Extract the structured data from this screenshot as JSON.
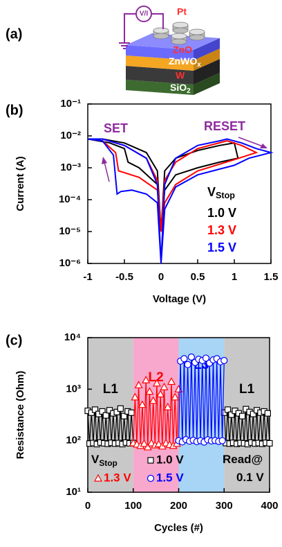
{
  "schematic": {
    "panel_label": "(a)",
    "source": "V/I",
    "layers": [
      {
        "text": "Pt"
      },
      {
        "text": "ZnO"
      },
      {
        "text": "ZnWO",
        "sub": "x"
      },
      {
        "text": "W"
      },
      {
        "text": "SiO",
        "sub": "2"
      }
    ]
  },
  "chart_data": [
    {
      "type": "line",
      "panel_label": "(b)",
      "xlabel": "Voltage (V)",
      "ylabel": "Current (A)",
      "log_y": true,
      "grid": false,
      "xlim": [
        -1,
        1.5
      ],
      "xticks": [
        -1,
        -0.5,
        0,
        0.5,
        1,
        1.5
      ],
      "ylim": [
        1e-06,
        0.1
      ],
      "yticks": [
        {
          "value": 1e-06,
          "label": "10⁻⁶"
        },
        {
          "value": 1e-05,
          "label": "10⁻⁵"
        },
        {
          "value": 0.0001,
          "label": "10⁻⁴"
        },
        {
          "value": 0.001,
          "label": "10⁻³"
        },
        {
          "value": 0.01,
          "label": "10⁻²"
        },
        {
          "value": 0.1,
          "label": "10⁻¹"
        }
      ],
      "annotations": [
        {
          "text": "SET"
        },
        {
          "text": "RESET"
        }
      ],
      "legend_title": {
        "text": "V",
        "sub": "Stop"
      },
      "series": [
        {
          "name": "1.0 V",
          "color": "#000000",
          "x": [
            0,
            -0.05,
            -0.3,
            -0.45,
            -0.5,
            -0.7,
            -1,
            -0.8,
            -0.5,
            -0.2,
            -0.05,
            0,
            0.05,
            0.2,
            0.5,
            0.8,
            1.0,
            1.05,
            0.8,
            0.5,
            0.2,
            0.05,
            0
          ],
          "values": [
            1e-05,
            0.0003,
            0.001,
            0.0015,
            0.004,
            0.006,
            0.008,
            0.008,
            0.006,
            0.003,
            0.0008,
            1e-05,
            0.0008,
            0.002,
            0.0035,
            0.005,
            0.006,
            0.002,
            0.0015,
            0.001,
            0.0006,
            0.0002,
            1e-05
          ]
        },
        {
          "name": "1.3 V",
          "color": "#ff0000",
          "x": [
            0,
            -0.05,
            -0.3,
            -0.5,
            -0.58,
            -0.62,
            -0.8,
            -1,
            -0.8,
            -0.5,
            -0.2,
            -0.05,
            0,
            0.05,
            0.2,
            0.5,
            0.9,
            1.1,
            1.3,
            1.0,
            0.5,
            0.2,
            0.05,
            0
          ],
          "values": [
            1e-05,
            0.0002,
            0.0005,
            0.0007,
            0.0008,
            0.003,
            0.007,
            0.008,
            0.008,
            0.005,
            0.002,
            0.0004,
            1e-05,
            0.0004,
            0.0015,
            0.004,
            0.007,
            0.005,
            0.003,
            0.0018,
            0.0008,
            0.0003,
            8e-05,
            1e-05
          ]
        },
        {
          "name": "1.5 V",
          "color": "#0000ff",
          "x": [
            0,
            -0.05,
            -0.2,
            -0.4,
            -0.55,
            -0.6,
            -0.65,
            -0.8,
            -1,
            -0.8,
            -0.5,
            -0.2,
            -0.05,
            0,
            0.05,
            0.2,
            0.5,
            0.8,
            0.9,
            1.1,
            1.3,
            1.5,
            1.2,
            1.0,
            0.5,
            0.2,
            0.05,
            0
          ],
          "values": [
            1e-06,
            8e-05,
            0.00015,
            0.0002,
            0.00018,
            0.00015,
            0.0025,
            0.007,
            0.008,
            0.008,
            0.005,
            0.002,
            0.0003,
            1e-06,
            0.0003,
            0.002,
            0.005,
            0.007,
            0.008,
            0.006,
            0.004,
            0.003,
            0.002,
            0.0012,
            0.0006,
            0.00025,
            5e-05,
            1e-06
          ]
        }
      ]
    },
    {
      "type": "line",
      "panel_label": "(c)",
      "xlabel": "Cycles (#)",
      "ylabel": "Resistance (Ohm)",
      "log_y": true,
      "grid": false,
      "xlim": [
        0,
        400
      ],
      "xticks": [
        0,
        100,
        200,
        300,
        400
      ],
      "ylim": [
        10,
        10000
      ],
      "yticks": [
        {
          "value": 10,
          "label": "10¹"
        },
        {
          "value": 100,
          "label": "10²"
        },
        {
          "value": 1000,
          "label": "10³"
        },
        {
          "value": 10000,
          "label": "10⁴"
        }
      ],
      "regions": [
        {
          "label": "L1",
          "start": 0,
          "end": 100,
          "color": "#c8c8c8",
          "label_color": "#000000"
        },
        {
          "label": "L2",
          "start": 100,
          "end": 200,
          "color": "#f7a8cc",
          "label_color": "#ff0000"
        },
        {
          "label": "L3",
          "start": 200,
          "end": 300,
          "color": "#a8d4f5",
          "label_color": "#0000ff"
        },
        {
          "label": "L1",
          "start": 300,
          "end": 400,
          "color": "#c8c8c8",
          "label_color": "#000000"
        }
      ],
      "annotations": [
        {
          "text": "V",
          "sub": "Stop"
        },
        {
          "text": "Read@"
        },
        {
          "text": "0.1 V"
        }
      ],
      "series": [
        {
          "name": "1.0 V",
          "color": "#000000",
          "marker": "square",
          "x": [
            0,
            4,
            8,
            12,
            16,
            20,
            24,
            28,
            32,
            36,
            40,
            44,
            48,
            52,
            56,
            60,
            64,
            68,
            72,
            76,
            80,
            84,
            88,
            92,
            96,
            100,
            null,
            300,
            304,
            308,
            312,
            316,
            320,
            324,
            328,
            332,
            336,
            340,
            344,
            348,
            352,
            356,
            360,
            364,
            368,
            372,
            376,
            380,
            384,
            388,
            392,
            396,
            400
          ],
          "values": [
            380,
            88,
            350,
            90,
            400,
            86,
            330,
            92,
            370,
            89,
            310,
            87,
            390,
            91,
            340,
            88,
            360,
            90,
            420,
            86,
            300,
            92,
            370,
            89,
            350,
            90,
            null,
            350,
            90,
            400,
            88,
            320,
            91,
            380,
            87,
            340,
            90,
            300,
            89,
            410,
            86,
            360,
            92,
            330,
            88,
            390,
            90,
            350,
            87,
            370,
            91,
            340,
            89
          ]
        },
        {
          "name": "1.3 V",
          "color": "#ff0000",
          "marker": "triangle",
          "x": [
            100,
            104,
            108,
            112,
            116,
            120,
            124,
            128,
            132,
            136,
            140,
            144,
            148,
            152,
            156,
            160,
            164,
            168,
            172,
            176,
            180,
            184,
            188,
            192,
            196,
            200
          ],
          "values": [
            90,
            700,
            85,
            1200,
            80,
            500,
            88,
            1500,
            75,
            900,
            90,
            600,
            82,
            1300,
            86,
            800,
            78,
            1100,
            90,
            450,
            84,
            1400,
            80,
            700,
            88,
            1000
          ]
        },
        {
          "name": "1.5 V",
          "color": "#0000ff",
          "marker": "circle",
          "x": [
            200,
            204,
            208,
            212,
            216,
            220,
            224,
            228,
            232,
            236,
            240,
            244,
            248,
            252,
            256,
            260,
            264,
            268,
            272,
            276,
            280,
            284,
            288,
            292,
            296,
            300
          ],
          "values": [
            100,
            3500,
            95,
            3900,
            105,
            3000,
            98,
            4200,
            102,
            3300,
            96,
            3800,
            100,
            3600,
            94,
            4000,
            104,
            3200,
            99,
            3700,
            101,
            3900,
            97,
            3400,
            100,
            3600
          ]
        }
      ]
    }
  ]
}
